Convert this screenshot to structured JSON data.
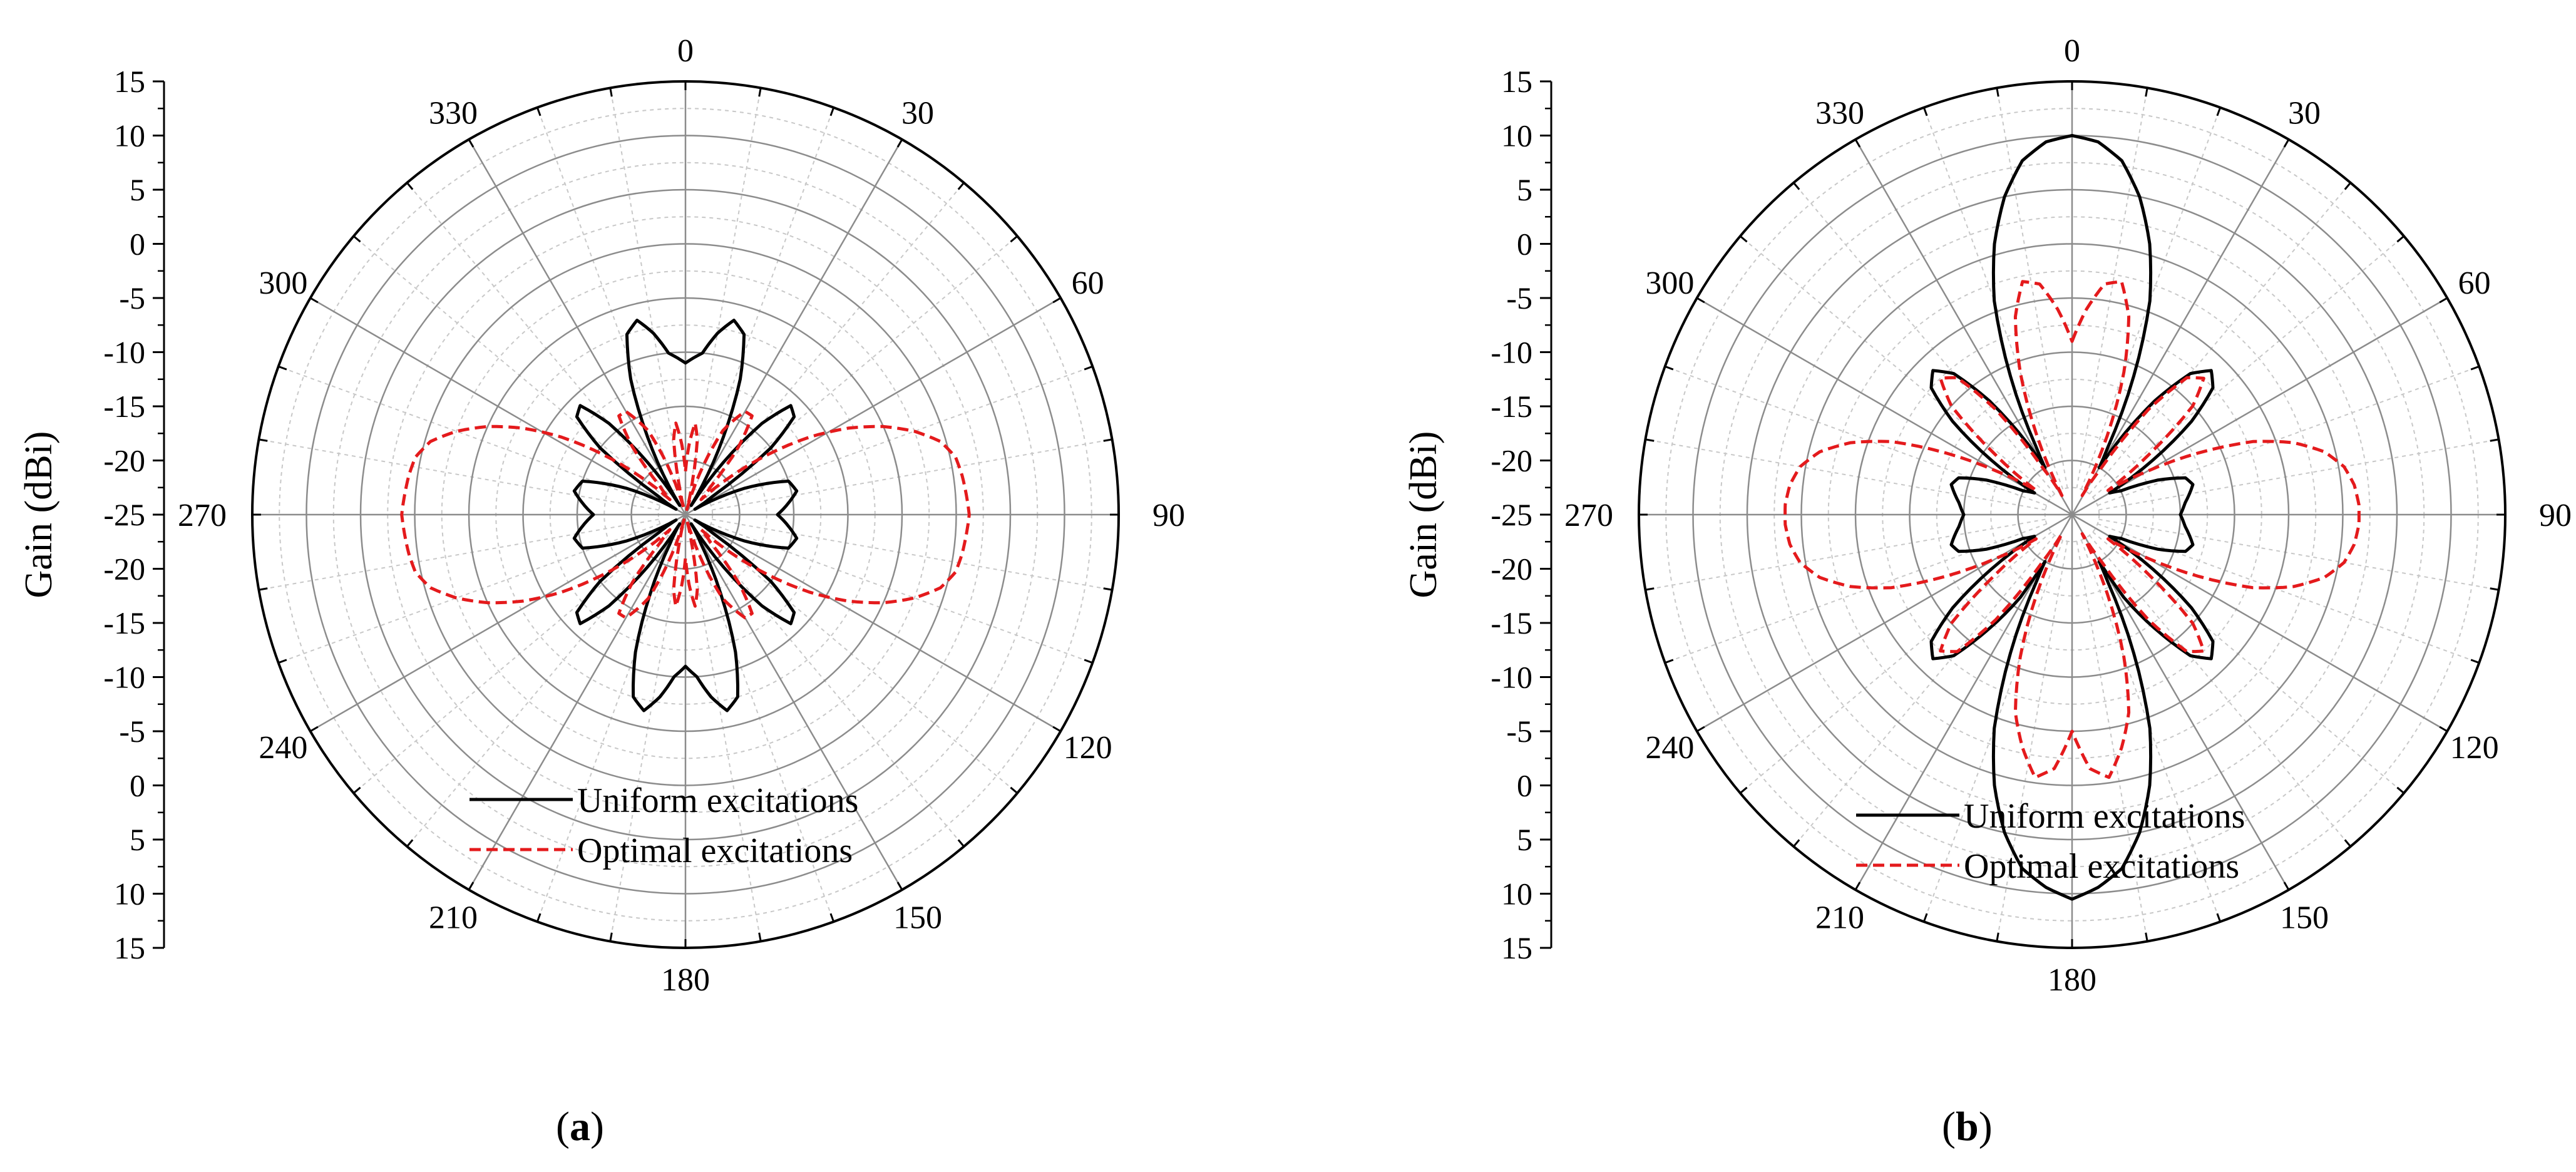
{
  "figure": {
    "panels": [
      {
        "label": "a",
        "caption_open": "(",
        "caption_close": ")"
      },
      {
        "label": "b",
        "caption_open": "(",
        "caption_close": ")"
      }
    ]
  },
  "colors": {
    "uniform": "#000000",
    "optimal": "#e41a1c",
    "major_grid": "#8c8c8c",
    "minor_grid": "#c8c8c8"
  },
  "chart_data": [
    {
      "type": "polar-line",
      "title": "(a)",
      "ylabel": "Gain (dBi)",
      "r_range": [
        -25,
        15
      ],
      "r_ticks_major": [
        -25,
        -20,
        -15,
        -10,
        -5,
        0,
        5,
        10,
        15
      ],
      "r_ticks_minor_step": 2.5,
      "axis_scale_labels": [
        "15",
        "10",
        "5",
        "0",
        "-5",
        "-10",
        "-15",
        "-20",
        "-25",
        "-20",
        "-15",
        "-10",
        "-5",
        "0",
        "5",
        "10",
        "15"
      ],
      "angle_ticks": [
        0,
        30,
        60,
        90,
        120,
        150,
        180,
        210,
        240,
        270,
        300,
        330
      ],
      "angle_direction": "clockwise, 0 at top",
      "legend_position": "bottom-center",
      "series": [
        {
          "name": "Uniform excitations",
          "style": "solid",
          "color": "#000000",
          "theta": [
            0,
            6,
            10,
            14,
            18,
            22,
            26,
            30,
            32,
            36,
            40,
            44,
            48,
            52,
            56,
            60,
            66,
            72,
            78,
            84,
            90,
            96,
            102,
            108,
            114,
            120,
            124,
            128,
            132,
            136,
            140,
            144,
            148,
            152,
            156,
            160,
            164,
            168,
            172,
            176,
            180
          ],
          "r": [
            -11,
            -10,
            -8,
            -6.5,
            -7.5,
            -11.5,
            -17,
            -22,
            -24,
            -19,
            -14,
            -11,
            -11.5,
            -15,
            -22,
            -24,
            -19,
            -15,
            -14.5,
            -15.5,
            -16.5,
            -15.5,
            -14.5,
            -15,
            -19,
            -24,
            -22,
            -15,
            -11.5,
            -11,
            -14,
            -19,
            -24,
            -22,
            -17,
            -11.5,
            -7.5,
            -6.5,
            -8,
            -10,
            -11
          ],
          "mirror_about_vertical": true
        },
        {
          "name": "Optimal excitations",
          "style": "dashed",
          "color": "#e41a1c",
          "theta": [
            0,
            3,
            6,
            9,
            12,
            15,
            18,
            24,
            30,
            34,
            38,
            42,
            46,
            50,
            54,
            58,
            62,
            66,
            70,
            74,
            78,
            82,
            86,
            90,
            94,
            98,
            102,
            106,
            110,
            114,
            118,
            122,
            126,
            130,
            134,
            138,
            142,
            146,
            150,
            156,
            162,
            165,
            168,
            171,
            174,
            177,
            180
          ],
          "r": [
            -21,
            -18.5,
            -16.5,
            -18,
            -22,
            -24.5,
            -22,
            -16.5,
            -14,
            -14,
            -17,
            -21.5,
            -23,
            -19.5,
            -15.5,
            -11.5,
            -8,
            -5,
            -2.5,
            -0.5,
            0.5,
            0.8,
            1,
            1.2,
            1,
            0.8,
            0.5,
            -0.5,
            -2.5,
            -5,
            -8,
            -11.5,
            -15.5,
            -19.5,
            -23,
            -21.5,
            -17,
            -14,
            -14,
            -16.5,
            -22,
            -24.5,
            -22,
            -18,
            -16.5,
            -18.5,
            -21
          ],
          "mirror_about_vertical": true
        }
      ]
    },
    {
      "type": "polar-line",
      "title": "(b)",
      "ylabel": "Gain (dBi)",
      "r_range": [
        -25,
        15
      ],
      "r_ticks_major": [
        -25,
        -20,
        -15,
        -10,
        -5,
        0,
        5,
        10,
        15
      ],
      "r_ticks_minor_step": 2.5,
      "axis_scale_labels": [
        "15",
        "10",
        "5",
        "0",
        "-5",
        "-10",
        "-15",
        "-20",
        "-25",
        "-20",
        "-15",
        "-10",
        "-5",
        "0",
        "5",
        "10",
        "15"
      ],
      "angle_ticks": [
        0,
        30,
        60,
        90,
        120,
        150,
        180,
        210,
        240,
        270,
        300,
        330
      ],
      "angle_direction": "clockwise, 0 at top",
      "legend_position": "bottom-center",
      "series": [
        {
          "name": "Uniform excitations",
          "style": "solid",
          "color": "#000000",
          "theta": [
            0,
            4,
            8,
            12,
            16,
            20,
            24,
            28,
            30,
            33,
            36,
            40,
            44,
            48,
            52,
            56,
            60,
            64,
            68,
            72,
            76,
            80,
            84,
            90,
            96,
            100,
            104,
            108,
            112,
            116,
            120,
            124,
            128,
            132,
            136,
            140,
            144,
            148,
            150,
            152,
            156,
            160,
            164,
            168,
            172,
            176,
            180
          ],
          "r": [
            10,
            9.5,
            8,
            5,
            1,
            -4,
            -11,
            -18,
            -20,
            -16,
            -12,
            -8,
            -6.5,
            -7.5,
            -11,
            -16,
            -21,
            -20,
            -16.5,
            -14,
            -13.5,
            -14,
            -14.5,
            -15,
            -14.5,
            -14,
            -13.5,
            -14,
            -16.5,
            -20,
            -21,
            -16,
            -11,
            -7.5,
            -6.5,
            -8,
            -12,
            -16,
            -20,
            -18,
            -11,
            -4,
            1,
            5,
            8,
            9.5,
            10.5
          ],
          "mirror_about_vertical": true
        },
        {
          "name": "Optimal excitations",
          "style": "dashed",
          "color": "#e41a1c",
          "theta": [
            0,
            4,
            8,
            12,
            16,
            20,
            24,
            28,
            32,
            36,
            40,
            44,
            48,
            52,
            56,
            60,
            64,
            68,
            72,
            76,
            80,
            84,
            88,
            90,
            92,
            96,
            100,
            104,
            108,
            112,
            116,
            120,
            124,
            128,
            132,
            136,
            140,
            144,
            148,
            152,
            156,
            160,
            164,
            168,
            172,
            176,
            180
          ],
          "r": [
            -9,
            -6,
            -3.5,
            -3,
            -6,
            -11,
            -17,
            -23,
            -20,
            -13,
            -8.5,
            -7.5,
            -10,
            -16,
            -21,
            -17,
            -12,
            -7,
            -3.5,
            -1,
            0.5,
            1.2,
            1.5,
            1.5,
            1.5,
            1.2,
            0.5,
            -1,
            -3.5,
            -7,
            -12,
            -17,
            -21,
            -16,
            -10,
            -7.5,
            -8.5,
            -13,
            -20,
            -23,
            -17,
            -11,
            -6,
            -3,
            -0.5,
            -1.5,
            -5
          ],
          "mirror_about_vertical": true
        }
      ]
    }
  ]
}
